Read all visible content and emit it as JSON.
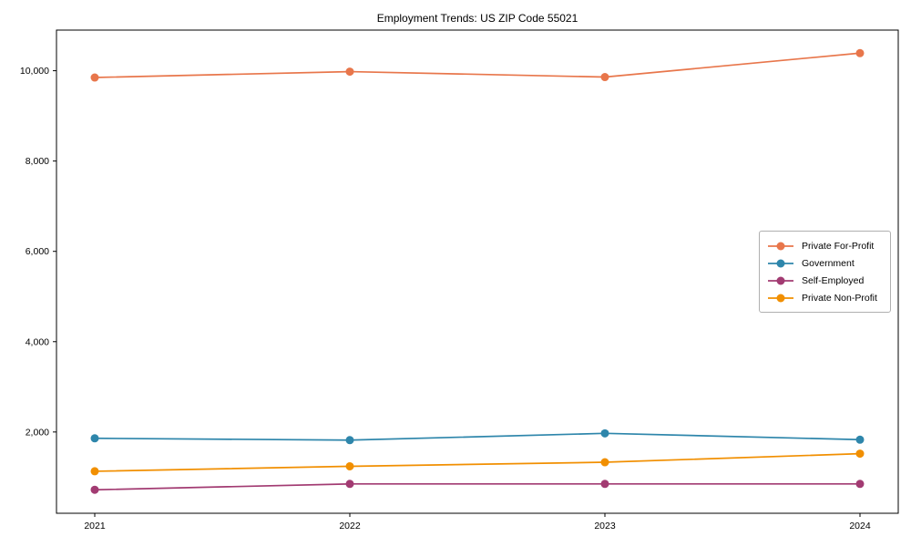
{
  "title": "Employment Trends: US ZIP Code 55021",
  "chart_data": {
    "type": "line",
    "title": "Employment Trends: US ZIP Code 55021",
    "xlabel": "",
    "ylabel": "",
    "x": [
      2021,
      2022,
      2023,
      2024
    ],
    "x_tick_labels": [
      "2021",
      "2022",
      "2023",
      "2024"
    ],
    "yticks": [
      2000,
      4000,
      6000,
      8000,
      10000
    ],
    "ytick_labels": [
      "2,000",
      "4,000",
      "6,000",
      "8,000",
      "10,000"
    ],
    "xlim": [
      2020.85,
      2024.15
    ],
    "ylim": [
      200,
      10900
    ],
    "grid": false,
    "legend_position": "center-right",
    "marker": "circle",
    "series": [
      {
        "name": "Private For-Profit",
        "color": "#E8764B",
        "values": [
          9850,
          9980,
          9860,
          10390
        ]
      },
      {
        "name": "Government",
        "color": "#2E86AB",
        "values": [
          1860,
          1820,
          1970,
          1830
        ]
      },
      {
        "name": "Self-Employed",
        "color": "#A23B72",
        "values": [
          720,
          850,
          850,
          850
        ]
      },
      {
        "name": "Private Non-Profit",
        "color": "#F18F01",
        "values": [
          1130,
          1240,
          1330,
          1520
        ]
      }
    ]
  }
}
